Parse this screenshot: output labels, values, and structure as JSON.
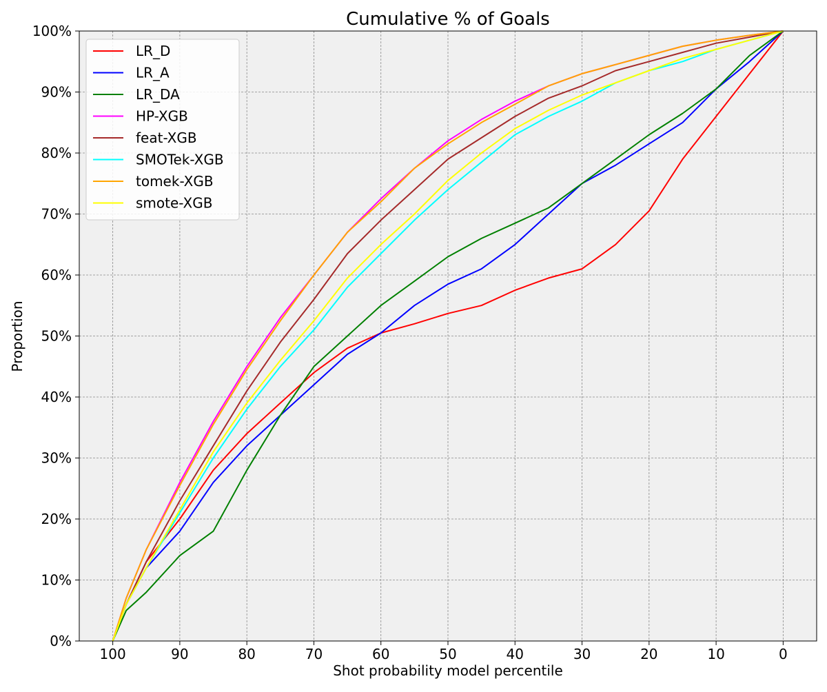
{
  "chart_data": {
    "type": "line",
    "title": "Cumulative % of Goals",
    "xlabel": "Shot probability model percentile",
    "ylabel": "Proportion",
    "xlim": [
      105,
      -5
    ],
    "ylim": [
      0,
      1
    ],
    "x_inverted": true,
    "grid": true,
    "legend_position": "upper-left",
    "x_ticks": [
      100,
      90,
      80,
      70,
      60,
      50,
      40,
      30,
      20,
      10,
      0
    ],
    "x_tick_labels": [
      "100",
      "90",
      "80",
      "70",
      "60",
      "50",
      "40",
      "30",
      "20",
      "10",
      "0"
    ],
    "y_ticks": [
      0,
      0.1,
      0.2,
      0.3,
      0.4,
      0.5,
      0.6,
      0.7,
      0.8,
      0.9,
      1.0
    ],
    "y_tick_labels": [
      "0%",
      "10%",
      "20%",
      "30%",
      "40%",
      "50%",
      "60%",
      "70%",
      "80%",
      "90%",
      "100%"
    ],
    "x": [
      100,
      98,
      95,
      90,
      85,
      80,
      75,
      70,
      65,
      60,
      55,
      50,
      45,
      40,
      35,
      30,
      25,
      20,
      15,
      10,
      5,
      0
    ],
    "series": [
      {
        "name": "LR_D",
        "color": "#ff0000",
        "values": [
          0,
          0.06,
          0.13,
          0.2,
          0.28,
          0.34,
          0.39,
          0.44,
          0.48,
          0.505,
          0.52,
          0.537,
          0.55,
          0.575,
          0.595,
          0.61,
          0.65,
          0.705,
          0.79,
          0.86,
          0.93,
          1.0
        ]
      },
      {
        "name": "LR_A",
        "color": "#0000ff",
        "values": [
          0,
          0.06,
          0.12,
          0.18,
          0.26,
          0.32,
          0.37,
          0.42,
          0.47,
          0.505,
          0.55,
          0.585,
          0.61,
          0.65,
          0.7,
          0.75,
          0.78,
          0.815,
          0.85,
          0.905,
          0.95,
          1.0
        ]
      },
      {
        "name": "LR_DA",
        "color": "#008000",
        "values": [
          0,
          0.05,
          0.08,
          0.14,
          0.18,
          0.28,
          0.37,
          0.45,
          0.5,
          0.55,
          0.59,
          0.63,
          0.66,
          0.685,
          0.71,
          0.75,
          0.79,
          0.83,
          0.865,
          0.905,
          0.96,
          1.0
        ]
      },
      {
        "name": "HP-XGB",
        "color": "#ff00ff",
        "values": [
          0,
          0.07,
          0.15,
          0.26,
          0.36,
          0.45,
          0.53,
          0.6,
          0.67,
          0.725,
          0.775,
          0.82,
          0.855,
          0.885,
          0.91,
          0.93,
          0.945,
          0.96,
          0.975,
          0.985,
          0.993,
          1.0
        ]
      },
      {
        "name": "feat-XGB",
        "color": "#a52a2a",
        "values": [
          0,
          0.06,
          0.13,
          0.23,
          0.32,
          0.41,
          0.49,
          0.56,
          0.635,
          0.69,
          0.74,
          0.79,
          0.825,
          0.86,
          0.89,
          0.91,
          0.935,
          0.95,
          0.965,
          0.98,
          0.99,
          1.0
        ]
      },
      {
        "name": "SMOTek-XGB",
        "color": "#00ffff",
        "values": [
          0,
          0.06,
          0.12,
          0.21,
          0.3,
          0.38,
          0.45,
          0.51,
          0.58,
          0.635,
          0.69,
          0.74,
          0.785,
          0.83,
          0.86,
          0.885,
          0.915,
          0.935,
          0.95,
          0.97,
          0.985,
          1.0
        ]
      },
      {
        "name": "tomek-XGB",
        "color": "#ffa500",
        "values": [
          0,
          0.07,
          0.15,
          0.255,
          0.355,
          0.445,
          0.525,
          0.6,
          0.67,
          0.72,
          0.775,
          0.815,
          0.85,
          0.88,
          0.91,
          0.93,
          0.945,
          0.96,
          0.975,
          0.985,
          0.993,
          1.0
        ]
      },
      {
        "name": "smote-XGB",
        "color": "#ffff00",
        "values": [
          0,
          0.06,
          0.12,
          0.215,
          0.31,
          0.39,
          0.46,
          0.525,
          0.595,
          0.65,
          0.7,
          0.755,
          0.8,
          0.84,
          0.87,
          0.895,
          0.915,
          0.935,
          0.955,
          0.97,
          0.985,
          1.0
        ]
      }
    ]
  }
}
